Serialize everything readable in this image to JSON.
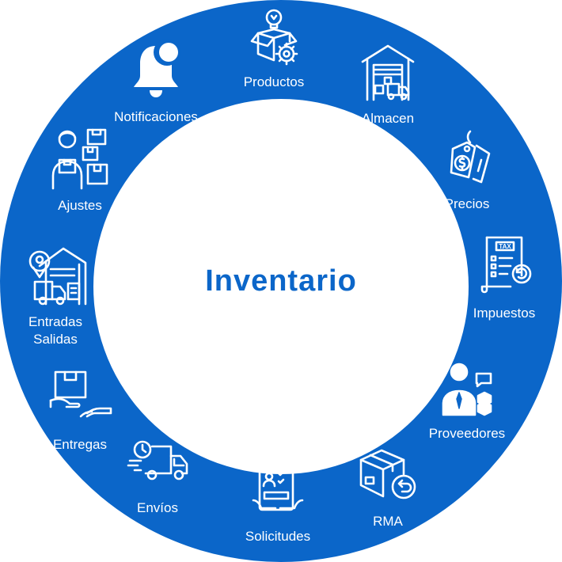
{
  "center": {
    "title": "Inventario"
  },
  "items": {
    "productos": "Productos",
    "almacen": "Almacen",
    "precios": "Precios",
    "impuestos": "Impuestos",
    "proveedores": "Proveedores",
    "rma": "RMA",
    "solicitudes": "Solicitudes",
    "envios": "Envíos",
    "entregas": "Entregas",
    "entradas_line1": "Entradas",
    "entradas_line2": "Salidas",
    "ajustes": "Ajustes",
    "notificaciones": "Notificaciones"
  },
  "icons": {
    "productos": "box-lightbulb-gear-icon",
    "almacen": "warehouse-icon",
    "precios": "price-tag-icon",
    "impuestos": "tax-document-icon",
    "proveedores": "supplier-person-icon",
    "rma": "return-box-icon",
    "solicitudes": "request-clipboard-icon",
    "envios": "delivery-truck-icon",
    "entregas": "hand-package-icon",
    "entradas": "warehouse-location-icon",
    "ajustes": "worker-boxes-icon",
    "notificaciones": "bell-icon"
  },
  "colors": {
    "ring": "#0B66C9",
    "center_fill": "#FFFFFF",
    "title": "#0B66C9",
    "label": "#FFFFFF"
  }
}
